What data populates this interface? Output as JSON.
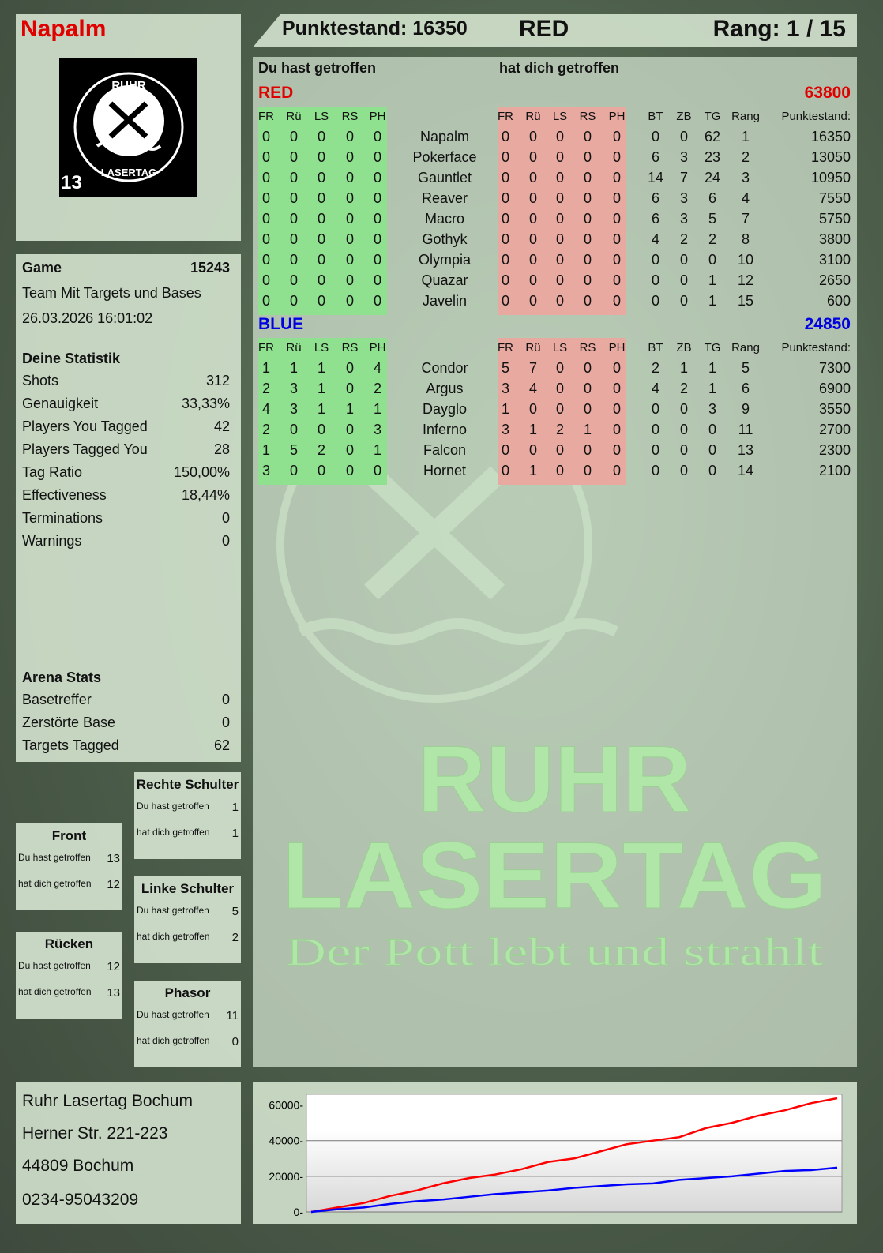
{
  "player": {
    "name": "Napalm",
    "logo_badge": "13",
    "logo_text": "RUHR LASERTAG"
  },
  "header": {
    "score": "Punktestand: 16350",
    "team": "RED",
    "rank": "Rang: 1 / 15"
  },
  "game": {
    "label": "Game",
    "id": "15243",
    "mode": "Team Mit Targets und Bases",
    "datetime": "26.03.2026 16:01:02"
  },
  "stats": {
    "title": "Deine Statistik",
    "items": [
      {
        "label": "Shots",
        "value": "312"
      },
      {
        "label": "Genauigkeit",
        "value": "33,33%"
      },
      {
        "label": "Players You Tagged",
        "value": "42"
      },
      {
        "label": "Players Tagged You",
        "value": "28"
      },
      {
        "label": "Tag Ratio",
        "value": "150,00%"
      },
      {
        "label": "Effectiveness",
        "value": "18,44%"
      },
      {
        "label": "Terminations",
        "value": "0"
      },
      {
        "label": "Warnings",
        "value": "0"
      }
    ]
  },
  "arena": {
    "title": "Arena Stats",
    "items": [
      {
        "label": "Basetreffer",
        "value": "0"
      },
      {
        "label": "Zerstörte Base",
        "value": "0"
      },
      {
        "label": "Targets Tagged",
        "value": "62"
      }
    ]
  },
  "zones": [
    {
      "title": "Rechte Schulter",
      "hit_label": "Du hast getroffen",
      "hit": "1",
      "got_label": "hat dich getroffen",
      "got": "1"
    },
    {
      "title": "Front",
      "hit_label": "Du hast getroffen",
      "hit": "13",
      "got_label": "hat dich getroffen",
      "got": "12"
    },
    {
      "title": "Linke Schulter",
      "hit_label": "Du hast getroffen",
      "hit": "5",
      "got_label": "hat dich getroffen",
      "got": "2"
    },
    {
      "title": "Rücken",
      "hit_label": "Du hast getroffen",
      "hit": "12",
      "got_label": "hat dich getroffen",
      "got": "13"
    },
    {
      "title": "Phasor",
      "hit_label": "Du hast getroffen",
      "hit": "11",
      "got_label": "hat dich getroffen",
      "got": "0"
    }
  ],
  "address": {
    "line1": "Ruhr Lasertag Bochum",
    "line2": "Herner Str. 221-223",
    "line3": "44809 Bochum",
    "line4": "0234-95043209"
  },
  "watermark": {
    "line1": "RUHR",
    "line2": "LASERTAG",
    "slogan": "Der Pott lebt und strahlt"
  },
  "table": {
    "you_hit": "Du hast getroffen",
    "hit_you": "hat dich getroffen",
    "hit_cols": [
      "FR",
      "Rü",
      "LS",
      "RS",
      "PH"
    ],
    "stat_cols": [
      "BT",
      "ZB",
      "TG",
      "Rang"
    ],
    "score_col": "Punktestand:",
    "teams": [
      {
        "name": "RED",
        "score": "63800",
        "color": "#e00000",
        "players": [
          [
            "Napalm",
            [
              0,
              0,
              0,
              0,
              0
            ],
            [
              0,
              0,
              0,
              0,
              0
            ],
            [
              0,
              0,
              62,
              1
            ],
            16350
          ],
          [
            "Pokerface",
            [
              0,
              0,
              0,
              0,
              0
            ],
            [
              0,
              0,
              0,
              0,
              0
            ],
            [
              6,
              3,
              23,
              2
            ],
            13050
          ],
          [
            "Gauntlet",
            [
              0,
              0,
              0,
              0,
              0
            ],
            [
              0,
              0,
              0,
              0,
              0
            ],
            [
              14,
              7,
              24,
              3
            ],
            10950
          ],
          [
            "Reaver",
            [
              0,
              0,
              0,
              0,
              0
            ],
            [
              0,
              0,
              0,
              0,
              0
            ],
            [
              6,
              3,
              6,
              4
            ],
            7550
          ],
          [
            "Macro",
            [
              0,
              0,
              0,
              0,
              0
            ],
            [
              0,
              0,
              0,
              0,
              0
            ],
            [
              6,
              3,
              5,
              7
            ],
            5750
          ],
          [
            "Gothyk",
            [
              0,
              0,
              0,
              0,
              0
            ],
            [
              0,
              0,
              0,
              0,
              0
            ],
            [
              4,
              2,
              2,
              8
            ],
            3800
          ],
          [
            "Olympia",
            [
              0,
              0,
              0,
              0,
              0
            ],
            [
              0,
              0,
              0,
              0,
              0
            ],
            [
              0,
              0,
              0,
              10
            ],
            3100
          ],
          [
            "Quazar",
            [
              0,
              0,
              0,
              0,
              0
            ],
            [
              0,
              0,
              0,
              0,
              0
            ],
            [
              0,
              0,
              1,
              12
            ],
            2650
          ],
          [
            "Javelin",
            [
              0,
              0,
              0,
              0,
              0
            ],
            [
              0,
              0,
              0,
              0,
              0
            ],
            [
              0,
              0,
              1,
              15
            ],
            600
          ]
        ]
      },
      {
        "name": "BLUE",
        "score": "24850",
        "color": "#0000e0",
        "players": [
          [
            "Condor",
            [
              1,
              1,
              1,
              0,
              4
            ],
            [
              5,
              7,
              0,
              0,
              0
            ],
            [
              2,
              1,
              1,
              5
            ],
            7300
          ],
          [
            "Argus",
            [
              2,
              3,
              1,
              0,
              2
            ],
            [
              3,
              4,
              0,
              0,
              0
            ],
            [
              4,
              2,
              1,
              6
            ],
            6900
          ],
          [
            "Dayglo",
            [
              4,
              3,
              1,
              1,
              1
            ],
            [
              1,
              0,
              0,
              0,
              0
            ],
            [
              0,
              0,
              3,
              9
            ],
            3550
          ],
          [
            "Inferno",
            [
              2,
              0,
              0,
              0,
              3
            ],
            [
              3,
              1,
              2,
              1,
              0
            ],
            [
              0,
              0,
              0,
              11
            ],
            2700
          ],
          [
            "Falcon",
            [
              1,
              5,
              2,
              0,
              1
            ],
            [
              0,
              0,
              0,
              0,
              0
            ],
            [
              0,
              0,
              0,
              13
            ],
            2300
          ],
          [
            "Hornet",
            [
              3,
              0,
              0,
              0,
              0
            ],
            [
              0,
              1,
              0,
              0,
              0
            ],
            [
              0,
              0,
              0,
              14
            ],
            2100
          ]
        ]
      }
    ]
  },
  "colors": {
    "green_block": "#8fe08f",
    "red_block": "#e7a9a0",
    "red": "#e00000",
    "blue": "#0000e0"
  },
  "chart_data": {
    "type": "line",
    "ylim": [
      0,
      66000
    ],
    "yticks": [
      0,
      20000,
      40000,
      60000
    ],
    "grid": true,
    "series": [
      {
        "color": "#ff0000",
        "values": [
          0,
          2500,
          5000,
          9000,
          12000,
          16000,
          19000,
          21000,
          24000,
          28000,
          30000,
          34000,
          38000,
          40000,
          42000,
          47000,
          50000,
          54000,
          57000,
          61000,
          63800
        ]
      },
      {
        "color": "#0000ff",
        "values": [
          0,
          1500,
          2500,
          4500,
          6000,
          7000,
          8500,
          10000,
          11000,
          12000,
          13500,
          14500,
          15500,
          16000,
          18000,
          19000,
          20000,
          21500,
          23000,
          23500,
          24850
        ]
      }
    ]
  }
}
